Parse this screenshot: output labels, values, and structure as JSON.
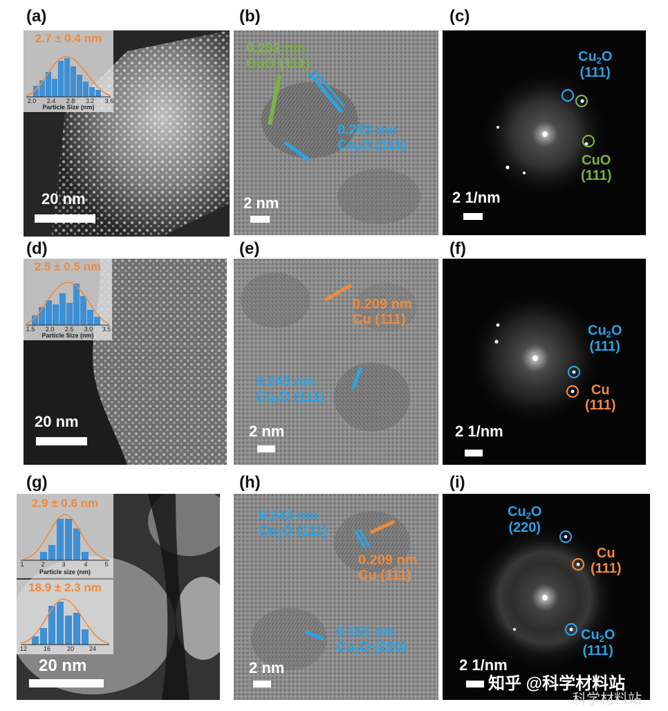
{
  "panels": {
    "a": {
      "label": "(a)",
      "scale": "20 nm",
      "inset": {
        "title": "2.7 ± 0.4 nm",
        "ticks": [
          "2.0",
          "2.4",
          "2.8",
          "3.2",
          "3.6"
        ],
        "xlabel": "Particle Size (nm)"
      }
    },
    "b": {
      "label": "(b)",
      "scale": "2 nm",
      "ann1_line1": "0.232 nm",
      "ann1_line2": "CuO (111)",
      "ann2_line1": "0.243 nm",
      "ann2_pre": "Cu",
      "ann2_sub": "2",
      "ann2_post": "O (111)"
    },
    "c": {
      "label": "(c)",
      "scale": "2 1/nm",
      "ann1_pre": "Cu",
      "ann1_sub": "2",
      "ann1_post": "O",
      "ann1_line2": "(111)",
      "ann2_line1": "CuO",
      "ann2_line2": "(111)"
    },
    "d": {
      "label": "(d)",
      "scale": "20 nm",
      "inset": {
        "title": "2.5 ± 0.5 nm",
        "ticks": [
          "1.5",
          "2.0",
          "2.5",
          "3.0",
          "3.5"
        ],
        "xlabel": "Particle Size (nm)"
      }
    },
    "e": {
      "label": "(e)",
      "scale": "2 nm",
      "ann1_line1": "0.209 nm",
      "ann1_line2": "Cu (111)",
      "ann2_line1": "0.243 nm",
      "ann2_pre": "Cu",
      "ann2_sub": "2",
      "ann2_post": "O (111)"
    },
    "f": {
      "label": "(f)",
      "scale": "2 1/nm",
      "ann1_pre": "Cu",
      "ann1_sub": "2",
      "ann1_post": "O",
      "ann1_line2": "(111)",
      "ann2_line1": "Cu",
      "ann2_line2": "(111)"
    },
    "g": {
      "label": "(g)",
      "scale": "20 nm",
      "inset1": {
        "title": "2.9 ± 0.6 nm",
        "ticks": [
          "1",
          "2",
          "3",
          "4",
          "5"
        ],
        "xlabel": "Particle size (nm)"
      },
      "inset2": {
        "title": "18.9 ± 2.3 nm",
        "ticks": [
          "12",
          "16",
          "20",
          "24"
        ]
      }
    },
    "h": {
      "label": "(h)",
      "scale": "2 nm",
      "ann1_line1": "0.243 nm",
      "ann1_pre": "Cu",
      "ann1_sub": "2",
      "ann1_post": "O (111)",
      "ann2_line1": "0.209 nm",
      "ann2_line2": "Cu (111)",
      "ann3_line1": "0.151 nm",
      "ann3_pre": "Cu",
      "ann3_sub": "2",
      "ann3_post": "O (220)"
    },
    "i": {
      "label": "(i)",
      "scale": "2 1/nm",
      "ann1_pre": "Cu",
      "ann1_sub": "2",
      "ann1_post": "O",
      "ann1_line2": "(220)",
      "ann2_line1": "Cu",
      "ann2_line2": "(111)",
      "ann3_pre": "Cu",
      "ann3_sub": "2",
      "ann3_post": "O",
      "ann3_line2": "(111)"
    }
  },
  "watermark": {
    "text": "知乎 @科学材料站",
    "text2": "科学材料站"
  },
  "colors": {
    "blue": "#29a3e6",
    "orange": "#f08a3c",
    "green": "#7cb342",
    "bar_blue": "#3d8fd6"
  }
}
